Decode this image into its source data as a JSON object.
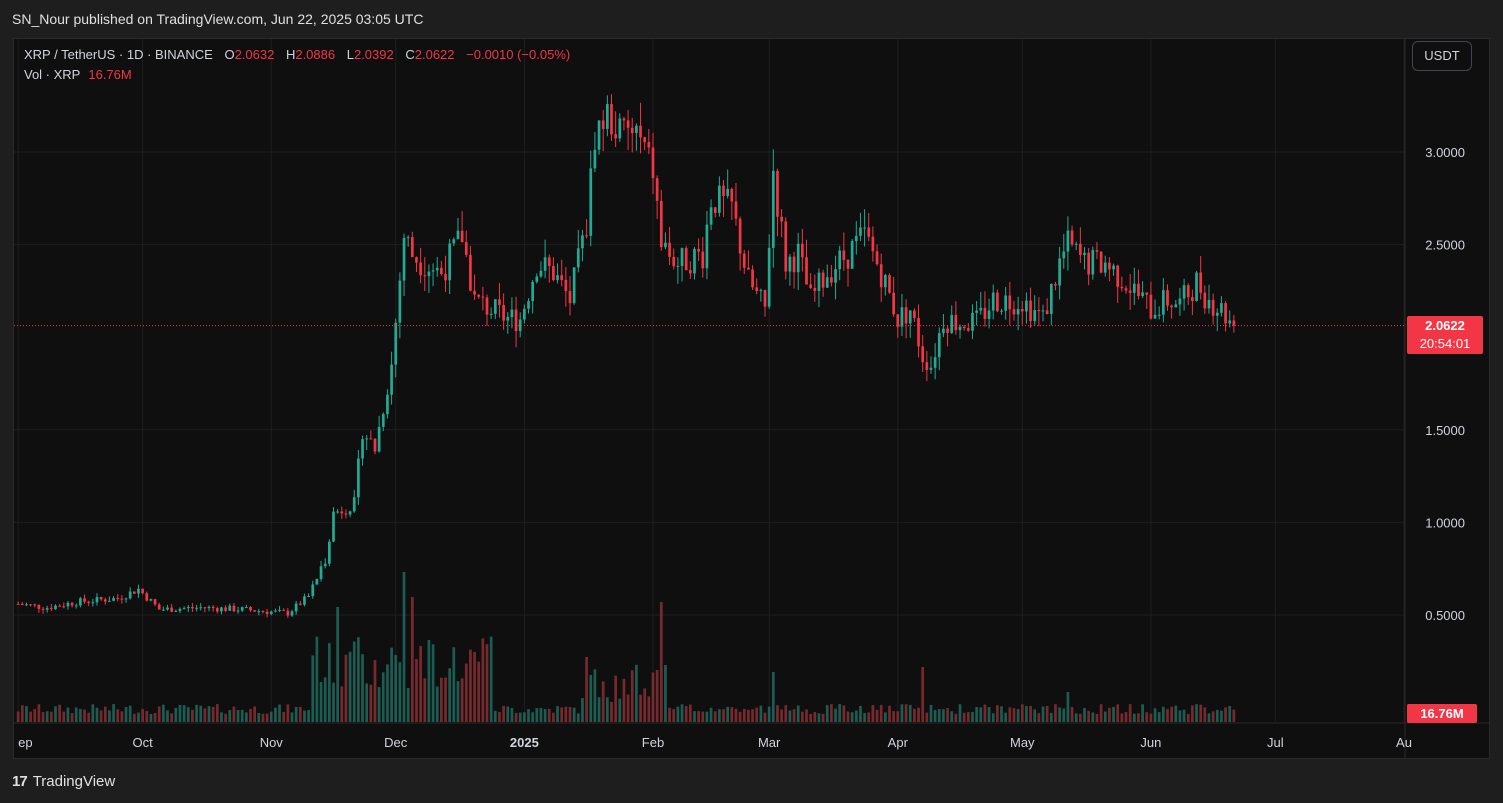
{
  "header": {
    "title": "SN_Nour published on TradingView.com, Jun 22, 2025 03:05 UTC"
  },
  "legend": {
    "symbol": "XRP / TetherUS · 1D · BINANCE",
    "open_label": "O",
    "open": "2.0632",
    "high_label": "H",
    "high": "2.0886",
    "low_label": "L",
    "low": "2.0392",
    "close_label": "C",
    "close": "2.0622",
    "change": "−0.0010 (−0.05%)",
    "vol_label": "Vol · XRP",
    "vol_value": "16.76M"
  },
  "currency_button": "USDT",
  "price_tag": {
    "price": "2.0622",
    "countdown": "20:54:01"
  },
  "volume_tag": "16.76M",
  "footer": {
    "brand": "TradingView"
  },
  "colors": {
    "up": "#22ab94",
    "down": "#f23645",
    "background": "#0f0f0f",
    "grid": "#1f1f1f"
  },
  "chart_data": {
    "type": "candlestick",
    "y_axis": {
      "ticks": [
        "3.0000",
        "2.5000",
        "1.5000",
        "1.0000",
        "0.5000"
      ],
      "tick_values": [
        3.0,
        2.5,
        1.5,
        1.0,
        0.5
      ],
      "range": [
        0.0,
        3.5
      ]
    },
    "x_axis": {
      "ticks": [
        "ep",
        "Oct",
        "Nov",
        "Dec",
        "2025",
        "Feb",
        "Mar",
        "Apr",
        "May",
        "Jun",
        "Jul",
        "Au"
      ],
      "tick_dates": [
        "2024-09-01",
        "2024-10-01",
        "2024-11-01",
        "2024-12-01",
        "2025-01-01",
        "2025-02-01",
        "2025-03-01",
        "2025-04-01",
        "2025-05-01",
        "2025-06-01",
        "2025-07-01",
        "2025-08-01"
      ],
      "range": [
        "2024-08-31",
        "2025-08-01"
      ]
    },
    "last_price": 2.0622,
    "anchors": [
      [
        "2024-09-01",
        0.56
      ],
      [
        "2024-09-08",
        0.54
      ],
      [
        "2024-09-15",
        0.57
      ],
      [
        "2024-09-25",
        0.59
      ],
      [
        "2024-09-30",
        0.64
      ],
      [
        "2024-10-05",
        0.53
      ],
      [
        "2024-10-15",
        0.54
      ],
      [
        "2024-10-25",
        0.53
      ],
      [
        "2024-11-05",
        0.51
      ],
      [
        "2024-11-10",
        0.6
      ],
      [
        "2024-11-14",
        0.8
      ],
      [
        "2024-11-16",
        1.05
      ],
      [
        "2024-11-21",
        1.1
      ],
      [
        "2024-11-23",
        1.5
      ],
      [
        "2024-11-26",
        1.4
      ],
      [
        "2024-11-30",
        1.85
      ],
      [
        "2024-12-03",
        2.55
      ],
      [
        "2024-12-05",
        2.45
      ],
      [
        "2024-12-08",
        2.4
      ],
      [
        "2024-12-12",
        2.35
      ],
      [
        "2024-12-17",
        2.55
      ],
      [
        "2024-12-20",
        2.2
      ],
      [
        "2024-12-28",
        2.1
      ],
      [
        "2024-12-31",
        2.1
      ],
      [
        "2025-01-04",
        2.4
      ],
      [
        "2025-01-08",
        2.35
      ],
      [
        "2025-01-12",
        2.2
      ],
      [
        "2025-01-16",
        2.6
      ],
      [
        "2025-01-18",
        3.1
      ],
      [
        "2025-01-21",
        3.2
      ],
      [
        "2025-01-24",
        3.1
      ],
      [
        "2025-01-28",
        3.1
      ],
      [
        "2025-02-01",
        2.9
      ],
      [
        "2025-02-03",
        2.5
      ],
      [
        "2025-02-07",
        2.4
      ],
      [
        "2025-02-13",
        2.45
      ],
      [
        "2025-02-15",
        2.75
      ],
      [
        "2025-02-20",
        2.7
      ],
      [
        "2025-02-24",
        2.3
      ],
      [
        "2025-02-28",
        2.15
      ],
      [
        "2025-03-02",
        2.9
      ],
      [
        "2025-03-05",
        2.4
      ],
      [
        "2025-03-08",
        2.45
      ],
      [
        "2025-03-11",
        2.2
      ],
      [
        "2025-03-15",
        2.35
      ],
      [
        "2025-03-20",
        2.45
      ],
      [
        "2025-03-24",
        2.55
      ],
      [
        "2025-03-28",
        2.35
      ],
      [
        "2025-04-01",
        2.1
      ],
      [
        "2025-04-04",
        2.15
      ],
      [
        "2025-04-07",
        1.9
      ],
      [
        "2025-04-09",
        1.85
      ],
      [
        "2025-04-12",
        2.1
      ],
      [
        "2025-04-16",
        2.08
      ],
      [
        "2025-04-20",
        2.08
      ],
      [
        "2025-04-24",
        2.2
      ],
      [
        "2025-05-01",
        2.2
      ],
      [
        "2025-05-06",
        2.1
      ],
      [
        "2025-05-10",
        2.4
      ],
      [
        "2025-05-12",
        2.5
      ],
      [
        "2025-05-16",
        2.4
      ],
      [
        "2025-05-21",
        2.4
      ],
      [
        "2025-05-26",
        2.3
      ],
      [
        "2025-06-01",
        2.15
      ],
      [
        "2025-06-05",
        2.2
      ],
      [
        "2025-06-08",
        2.18
      ],
      [
        "2025-06-12",
        2.3
      ],
      [
        "2025-06-15",
        2.2
      ],
      [
        "2025-06-18",
        2.15
      ],
      [
        "2025-06-21",
        2.06
      ]
    ],
    "volume_peaks": [
      [
        "2024-11-13",
        40
      ],
      [
        "2024-11-17",
        115
      ],
      [
        "2024-12-03",
        150
      ],
      [
        "2024-12-05",
        125
      ],
      [
        "2025-01-16",
        65
      ],
      [
        "2025-02-03",
        120
      ],
      [
        "2025-03-02",
        50
      ],
      [
        "2025-04-07",
        55
      ],
      [
        "2025-05-12",
        30
      ]
    ]
  }
}
